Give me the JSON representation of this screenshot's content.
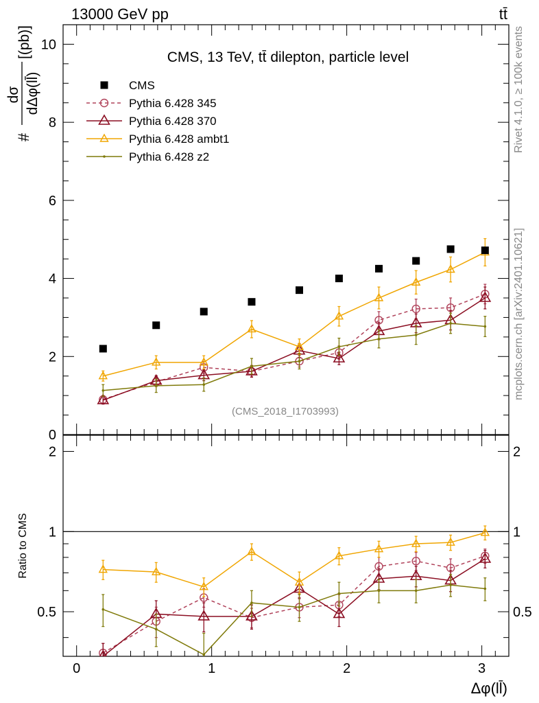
{
  "header": {
    "left": "13000 GeV pp",
    "right": "tt̄"
  },
  "side_labels": {
    "rivet": "Rivet 4.1.0, ≥ 100k events",
    "mcplots": "mcplots.cern.ch [arXiv:2401.10621]"
  },
  "colors": {
    "cms": "#000000",
    "p345": "#b0425a",
    "p370": "#8b0e22",
    "ambt1": "#f0a500",
    "z2": "#7f7a0a"
  },
  "chart_data": [
    {
      "type": "scatter",
      "title": "CMS, 13 TeV, tt̄ dilepton, particle level",
      "watermark": "(CMS_2018_I1703993)",
      "ylabel": "#dσ/dΔφ(ll̄) [(pb)]",
      "ylabel_num": "dσ",
      "ylabel_den": "dΔφ(ll̄)",
      "ylabel_prefix": "#",
      "ylabel_unit": "[(pb)]",
      "xlabel": "Δφ(ll̄)",
      "xlim": [
        -0.1,
        3.2
      ],
      "ylim": [
        0,
        10.5
      ],
      "yticks": [
        0,
        2,
        4,
        6,
        8,
        10
      ],
      "ytick_labels": [
        "0",
        "2",
        "4",
        "6",
        "8",
        "10"
      ],
      "x": [
        0.196,
        0.589,
        0.942,
        1.296,
        1.649,
        1.943,
        2.238,
        2.513,
        2.769,
        3.024
      ],
      "series": [
        {
          "name": "CMS",
          "key": "cms",
          "style": "square",
          "values": [
            2.2,
            2.8,
            3.15,
            3.4,
            3.7,
            4.0,
            4.25,
            4.45,
            4.75,
            4.72
          ]
        },
        {
          "name": "Pythia 6.428 345",
          "key": "p345",
          "style": "circle",
          "dashed": true,
          "values": [
            0.9,
            1.35,
            1.72,
            1.62,
            1.88,
            2.1,
            2.93,
            3.22,
            3.25,
            3.6
          ],
          "errors": [
            0.1,
            0.12,
            0.15,
            0.14,
            0.15,
            0.17,
            0.22,
            0.25,
            0.25,
            0.25
          ]
        },
        {
          "name": "Pythia 6.428 370",
          "key": "p370",
          "style": "triangle",
          "values": [
            0.88,
            1.38,
            1.52,
            1.62,
            2.15,
            1.95,
            2.65,
            2.85,
            2.93,
            3.5
          ],
          "errors": [
            0.1,
            0.13,
            0.14,
            0.15,
            0.18,
            0.16,
            0.22,
            0.24,
            0.25,
            0.28
          ]
        },
        {
          "name": "Pythia 6.428 ambt1",
          "key": "ambt1",
          "style": "triangle-open",
          "values": [
            1.5,
            1.85,
            1.85,
            2.7,
            2.25,
            3.03,
            3.5,
            3.9,
            4.23,
            4.67
          ],
          "errors": [
            0.13,
            0.17,
            0.17,
            0.22,
            0.2,
            0.25,
            0.28,
            0.3,
            0.32,
            0.35
          ]
        },
        {
          "name": "Pythia 6.428 z2",
          "key": "z2",
          "style": "dot",
          "values": [
            1.13,
            1.25,
            1.28,
            1.75,
            1.88,
            2.25,
            2.45,
            2.55,
            2.85,
            2.77
          ],
          "errors": [
            0.15,
            0.17,
            0.17,
            0.2,
            0.2,
            0.22,
            0.23,
            0.24,
            0.26,
            0.26
          ]
        }
      ]
    },
    {
      "type": "line",
      "ylabel": "Ratio to CMS",
      "xlabel": "Δφ(ll̄)",
      "xlim": [
        -0.1,
        3.2
      ],
      "ylim": [
        0.34,
        2.3
      ],
      "yticks": [
        0.5,
        1,
        2
      ],
      "ytick_labels": [
        "0.5",
        "1",
        "2"
      ],
      "xticks": [
        0,
        1,
        2,
        3
      ],
      "xtick_labels": [
        "0",
        "1",
        "2",
        "3"
      ],
      "reference_line": 1,
      "x": [
        0.196,
        0.589,
        0.942,
        1.296,
        1.649,
        1.943,
        2.238,
        2.513,
        2.769,
        3.024
      ],
      "series": [
        {
          "name": "Pythia 6.428 345",
          "key": "p345",
          "style": "circle",
          "dashed": true,
          "values": [
            0.35,
            0.46,
            0.565,
            0.475,
            0.52,
            0.53,
            0.74,
            0.775,
            0.73,
            0.81
          ],
          "errors": [
            0.03,
            0.06,
            0.045,
            0.04,
            0.045,
            0.05,
            0.06,
            0.06,
            0.06,
            0.05
          ]
        },
        {
          "name": "Pythia 6.428 370",
          "key": "p370",
          "style": "triangle",
          "values": [
            0.34,
            0.49,
            0.48,
            0.48,
            0.61,
            0.49,
            0.665,
            0.68,
            0.655,
            0.79
          ],
          "errors": [
            0.04,
            0.06,
            0.06,
            0.05,
            0.05,
            0.05,
            0.06,
            0.06,
            0.06,
            0.06
          ]
        },
        {
          "name": "Pythia 6.428 ambt1",
          "key": "ambt1",
          "style": "triangle-open",
          "values": [
            0.72,
            0.705,
            0.62,
            0.84,
            0.645,
            0.81,
            0.86,
            0.9,
            0.91,
            0.99
          ],
          "errors": [
            0.06,
            0.06,
            0.05,
            0.06,
            0.06,
            0.06,
            0.06,
            0.06,
            0.06,
            0.06
          ]
        },
        {
          "name": "Pythia 6.428 z2",
          "key": "z2",
          "style": "dot",
          "values": [
            0.51,
            0.43,
            0.345,
            0.54,
            0.52,
            0.585,
            0.6,
            0.6,
            0.63,
            0.61
          ],
          "errors": [
            0.07,
            0.06,
            0.07,
            0.06,
            0.06,
            0.06,
            0.06,
            0.06,
            0.06,
            0.06
          ]
        }
      ]
    }
  ]
}
